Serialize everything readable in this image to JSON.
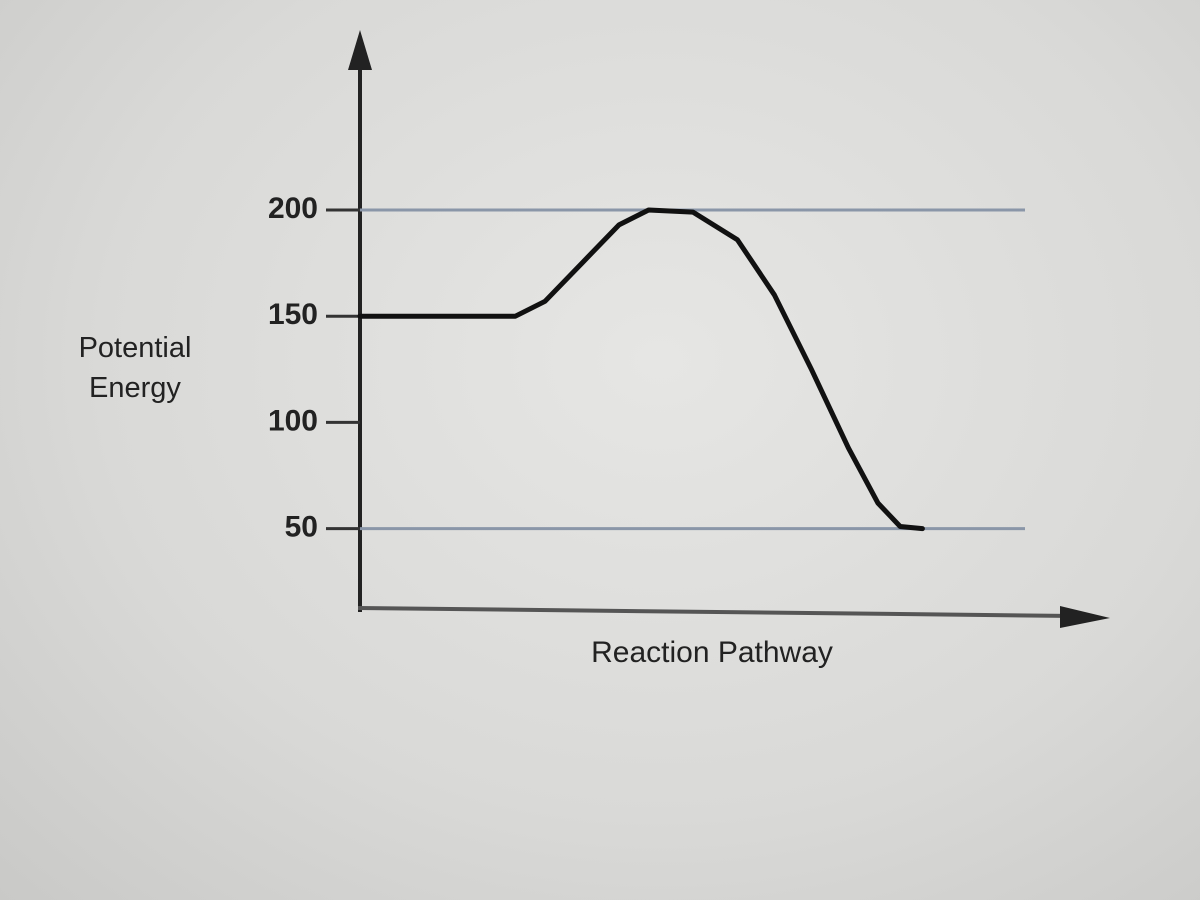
{
  "chart_data": {
    "type": "line",
    "y_label": "Potential Energy",
    "x_label": "Reaction Pathway",
    "x": [
      0,
      21,
      25,
      30,
      35,
      39,
      45,
      51,
      56,
      61,
      66,
      70,
      73,
      76
    ],
    "series": [
      {
        "name": "Potential Energy",
        "color": "#111111",
        "values": [
          150,
          150,
          157,
          175,
          193,
          200,
          199,
          186,
          160,
          125,
          88,
          62,
          51,
          50
        ]
      }
    ],
    "xlim": [
      0,
      100
    ],
    "ylim": [
      15,
      280
    ],
    "yticks": [
      50,
      100,
      150,
      200
    ],
    "reference_lines": [
      200,
      50
    ],
    "reference_color": "#8a96a8"
  }
}
